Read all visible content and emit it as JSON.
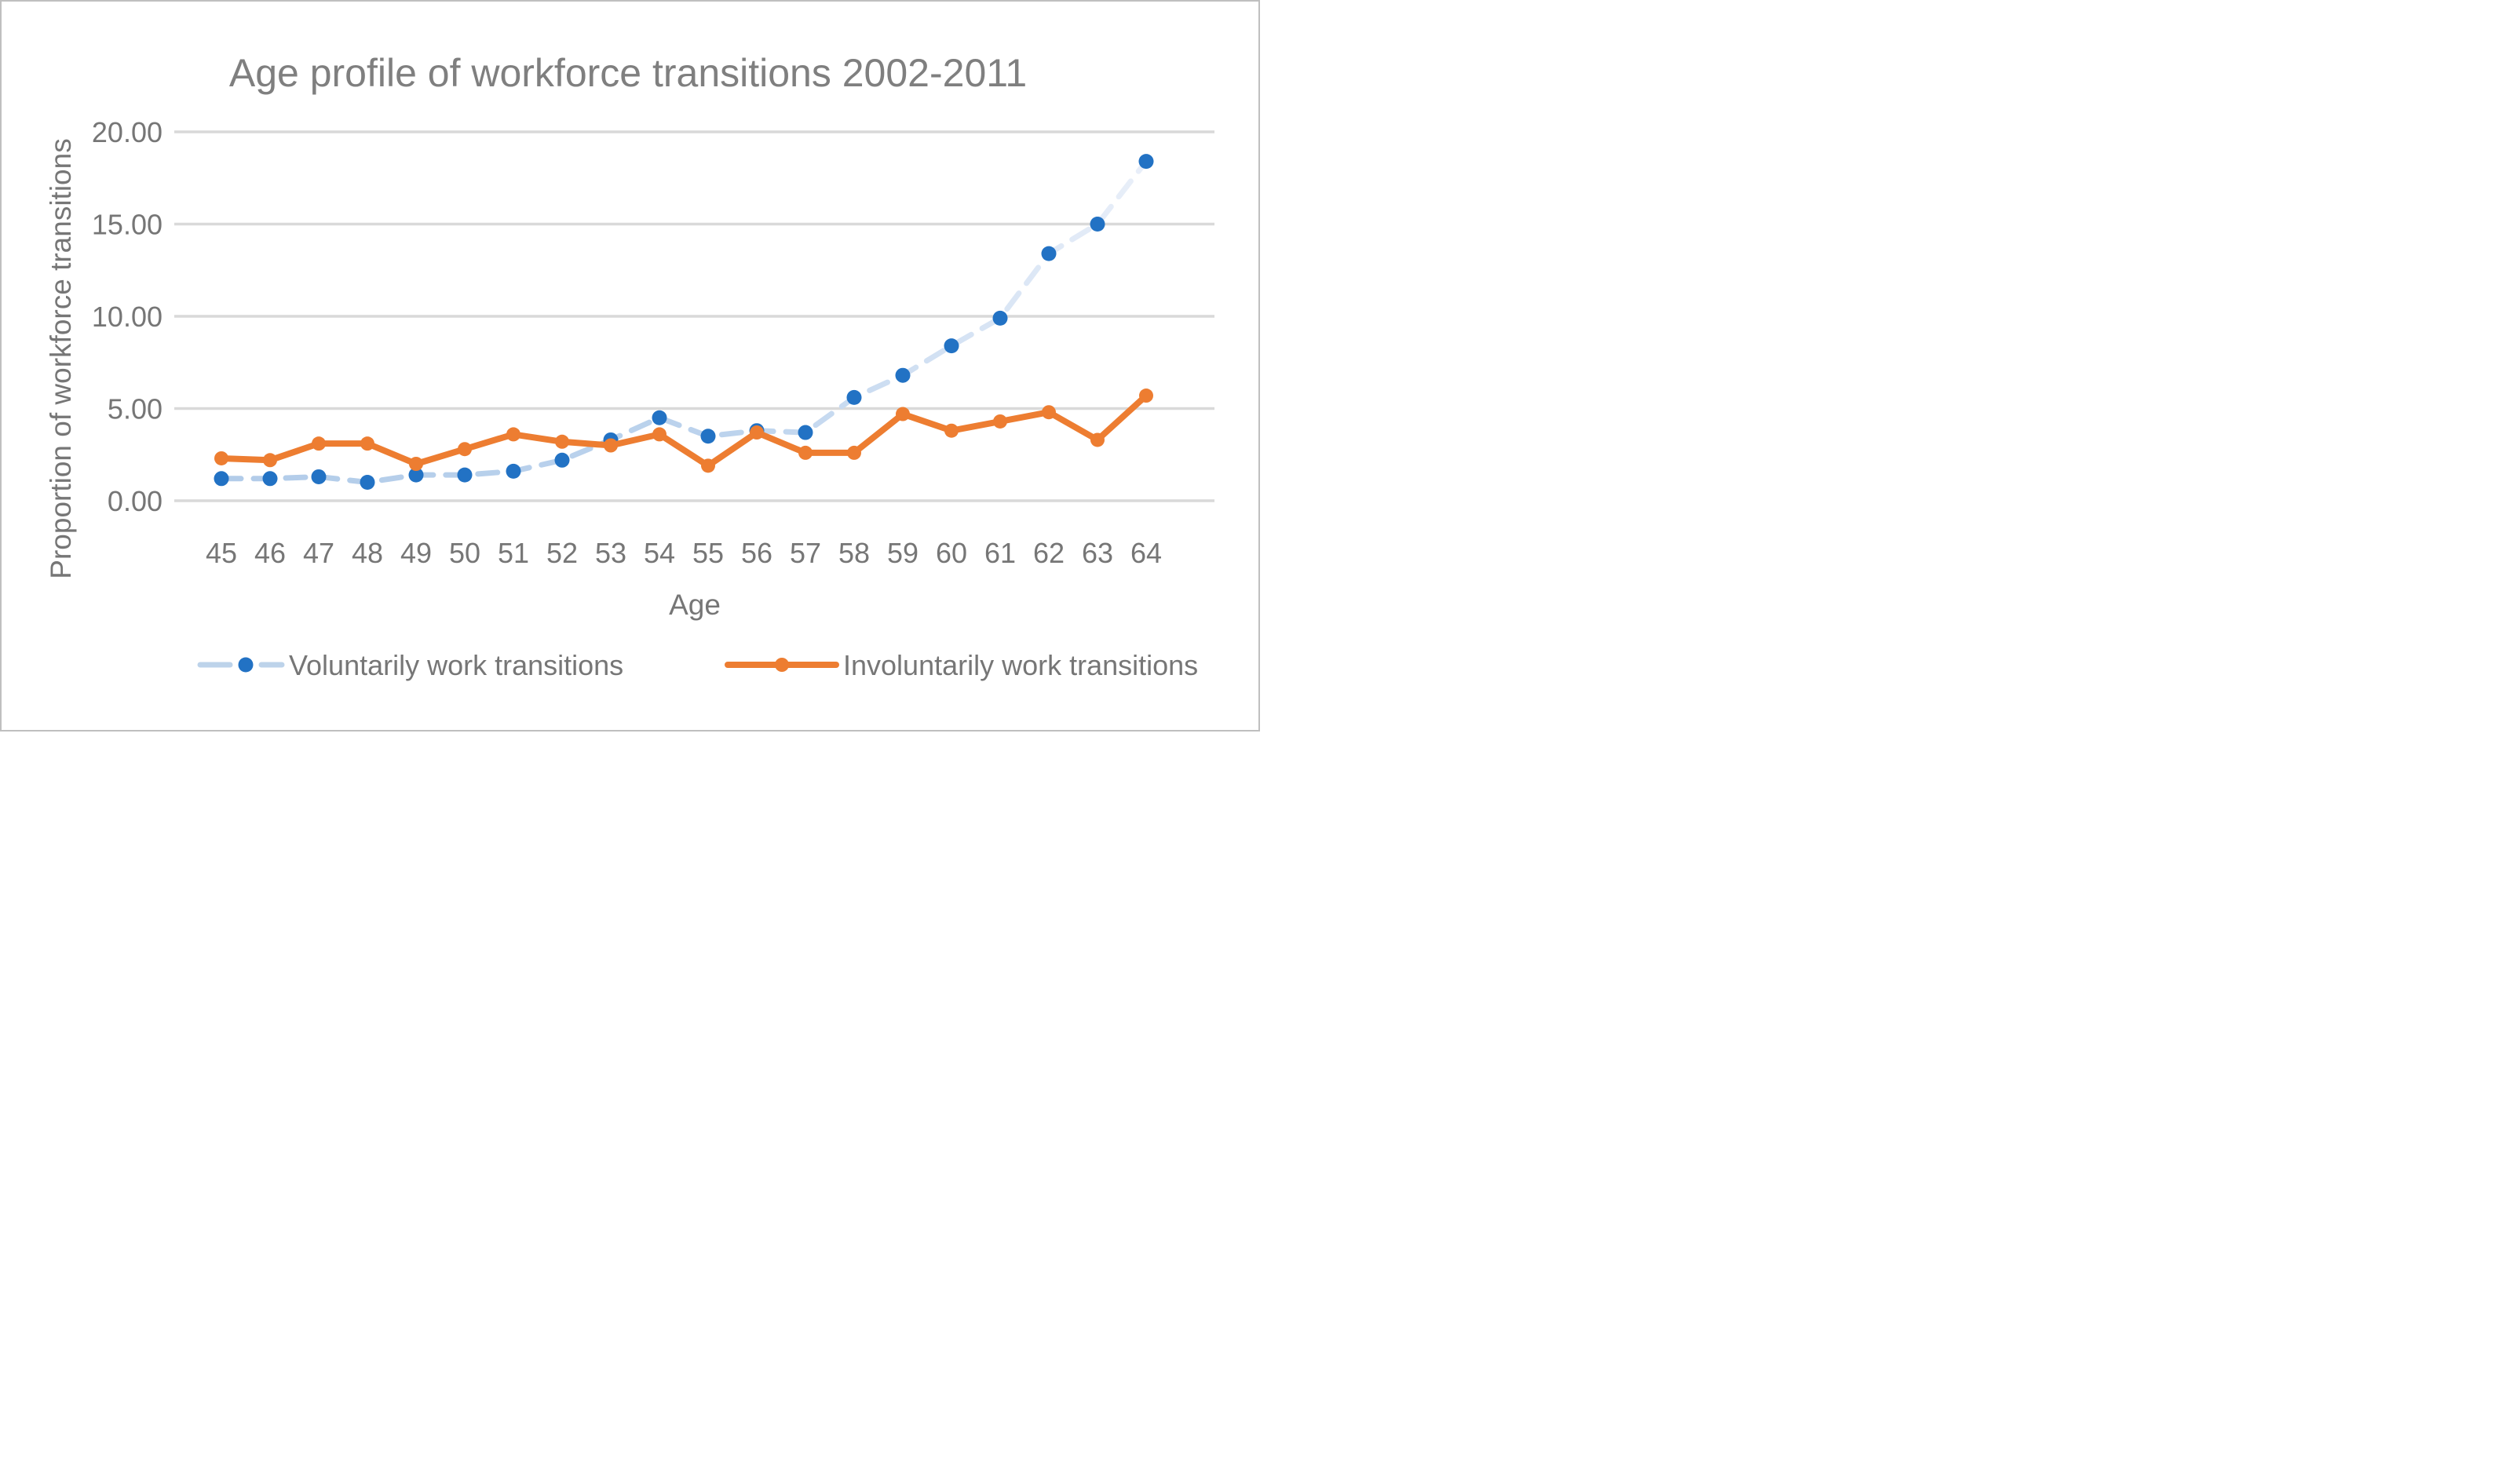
{
  "title": "Age profile of workforce transitions 2002-2011",
  "axis_titles": {
    "x": "Age",
    "y": "Proportion of workforce transitions"
  },
  "legend": {
    "voluntary_label": "Voluntarily work transitions",
    "involuntary_label": "Involuntarily work transitions"
  },
  "colors": {
    "title_text": "#7f7f7f",
    "axis_text": "#767676",
    "gridline": "#d9d9d9",
    "frame_border": "#bfbfbf",
    "background": "#ffffff",
    "voluntary_marker": "#2272c4",
    "voluntary_line_start": "#b2cce9",
    "voluntary_line_mid": "#bcd3ed",
    "voluntary_line_end": "#e9eff9",
    "involuntary_line": "#ed7d31"
  },
  "chart_data": {
    "type": "line",
    "title": "Age profile of workforce transitions 2002-2011",
    "xlabel": "Age",
    "ylabel": "Proportion of workforce transitions",
    "categories": [
      45,
      46,
      47,
      48,
      49,
      50,
      51,
      52,
      53,
      54,
      55,
      56,
      57,
      58,
      59,
      60,
      61,
      62,
      63,
      64
    ],
    "series": [
      {
        "name": "Voluntarily work transitions",
        "style": "dashed",
        "values": [
          1.2,
          1.2,
          1.3,
          1.0,
          1.4,
          1.4,
          1.6,
          2.2,
          3.3,
          4.5,
          3.5,
          3.8,
          3.7,
          5.6,
          6.8,
          8.4,
          9.9,
          13.4,
          15.0,
          18.4
        ]
      },
      {
        "name": "Involuntarily work transitions",
        "style": "solid",
        "values": [
          2.3,
          2.2,
          3.1,
          3.1,
          2.0,
          2.8,
          3.6,
          3.2,
          3.0,
          3.6,
          1.9,
          3.7,
          2.6,
          2.6,
          4.7,
          3.8,
          4.3,
          4.8,
          3.3,
          5.7
        ]
      }
    ],
    "ylim": [
      0,
      20
    ],
    "ytick_step": 5,
    "ytick_labels": [
      "0.00",
      "5.00",
      "10.00",
      "15.00",
      "20.00"
    ],
    "grid": "horizontal",
    "legend_position": "bottom"
  }
}
